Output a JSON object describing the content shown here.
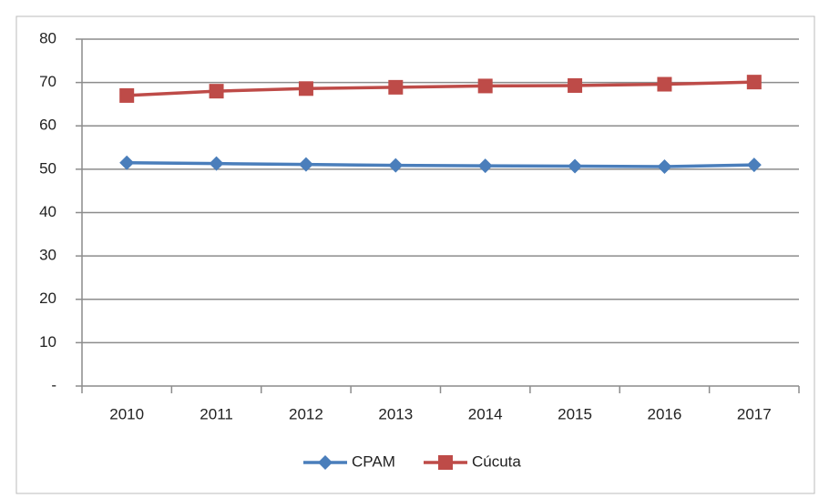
{
  "chart_data": {
    "type": "line",
    "categories": [
      "2010",
      "2011",
      "2012",
      "2013",
      "2014",
      "2015",
      "2016",
      "2017"
    ],
    "series": [
      {
        "name": "CPAM",
        "color": "#4a7ebb",
        "marker": "diamond",
        "values": [
          51.5,
          51.3,
          51.1,
          50.9,
          50.8,
          50.7,
          50.6,
          51.0
        ]
      },
      {
        "name": "Cúcuta",
        "color": "#be4b48",
        "marker": "square",
        "values": [
          67.0,
          68.0,
          68.6,
          68.9,
          69.2,
          69.3,
          69.6,
          70.1
        ]
      }
    ],
    "ylim": [
      0,
      80
    ],
    "yticks": [
      {
        "value": 0,
        "label": "-"
      },
      10,
      20,
      30,
      40,
      50,
      60,
      70,
      80
    ],
    "grid": true,
    "legend": "bottom"
  }
}
